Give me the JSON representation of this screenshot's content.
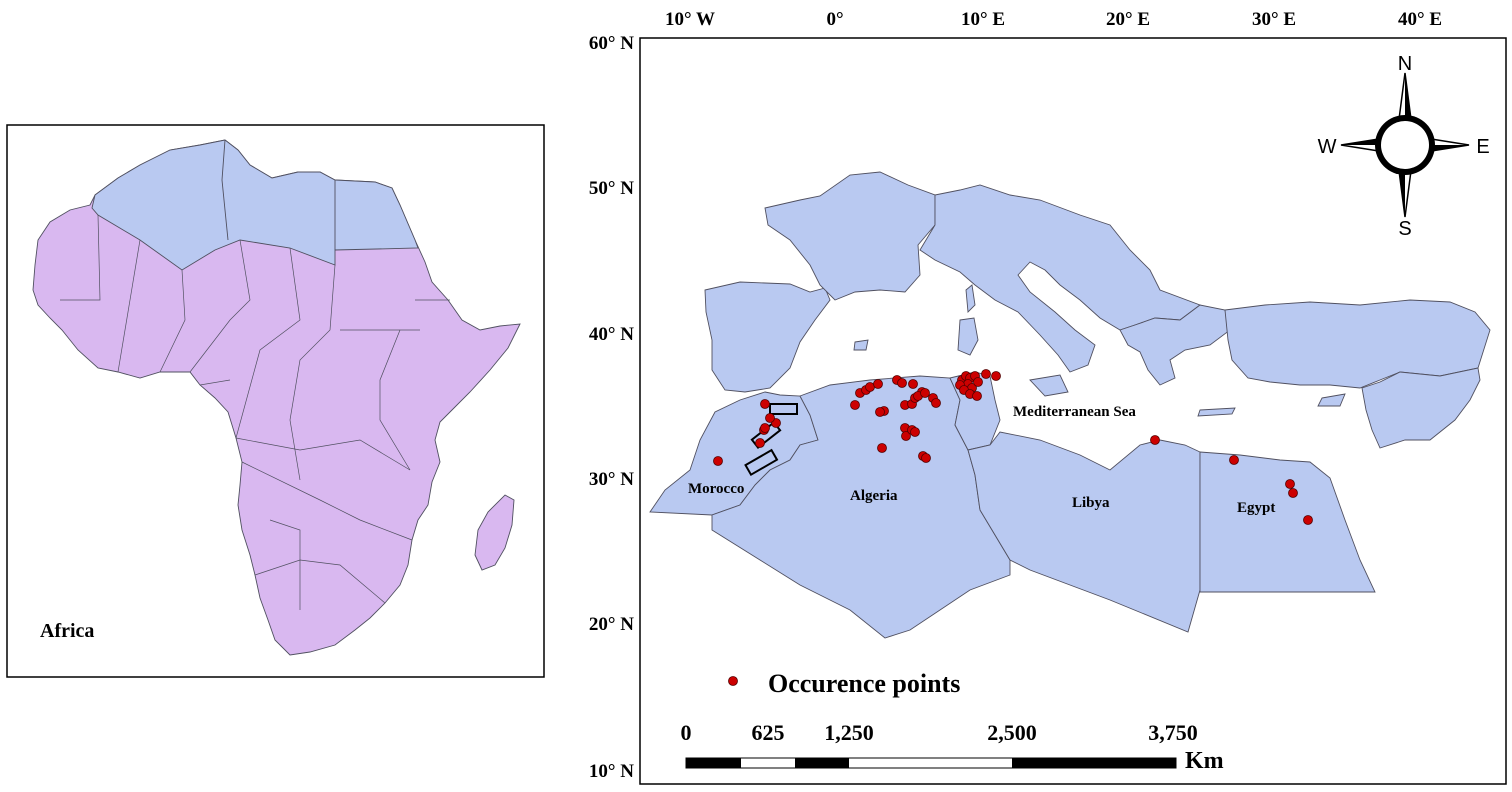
{
  "inset": {
    "region_label": "Africa"
  },
  "main_map": {
    "lon_ticks": [
      "10° W",
      "0°",
      "10° E",
      "20° E",
      "30° E",
      "40° E"
    ],
    "lat_ticks": [
      "60° N",
      "50° N",
      "40° N",
      "30° N",
      "20° N",
      "10° N"
    ],
    "country_labels": [
      "Morocco",
      "Algeria",
      "Libya",
      "Egypt"
    ],
    "sea_label": "Mediterranean Sea",
    "compass": {
      "n": "N",
      "s": "S",
      "e": "E",
      "w": "W"
    },
    "legend": {
      "label": "Occurence points",
      "marker_color": "#cc0000"
    },
    "scale_bar": {
      "ticks": [
        "0",
        "625",
        "1,250",
        "2,500",
        "3,750"
      ],
      "unit": "Km"
    }
  },
  "colors": {
    "land_fill": "#b9c9f1",
    "africa_fill": "#d9b8f0",
    "border": "#505060",
    "point": "#cc0000"
  }
}
